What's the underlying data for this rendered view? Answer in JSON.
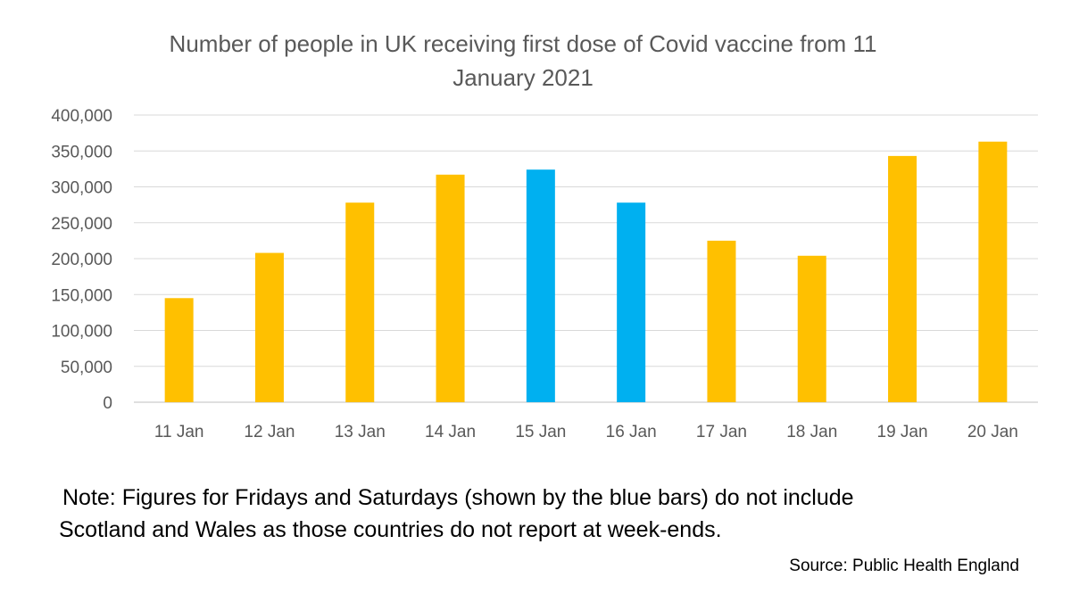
{
  "chart_data": {
    "type": "bar",
    "title_lines": [
      "Number of people in UK receiving first dose of Covid vaccine  from 11",
      "January 2021"
    ],
    "categories": [
      "11 Jan",
      "12 Jan",
      "13 Jan",
      "14 Jan",
      "15 Jan",
      "16 Jan",
      "17 Jan",
      "18 Jan",
      "19 Jan",
      "20 Jan"
    ],
    "values": [
      145000,
      208000,
      278000,
      317000,
      324000,
      278000,
      225000,
      204000,
      343000,
      363000
    ],
    "bar_colors": [
      "#FFC000",
      "#FFC000",
      "#FFC000",
      "#FFC000",
      "#00B0F0",
      "#00B0F0",
      "#FFC000",
      "#FFC000",
      "#FFC000",
      "#FFC000"
    ],
    "ylim": [
      0,
      400000
    ],
    "yticks": [
      "0",
      "50,000",
      "100,000",
      "150,000",
      "200,000",
      "250,000",
      "300,000",
      "350,000",
      "400,000"
    ],
    "grid": true,
    "xlabel": "",
    "ylabel": ""
  },
  "note_lines": [
    "Note: Figures for Fridays and Saturdays (shown by the blue bars)  do not include",
    "Scotland and Wales as those countries do not report at week-ends."
  ],
  "source": "Source: Public Health England"
}
